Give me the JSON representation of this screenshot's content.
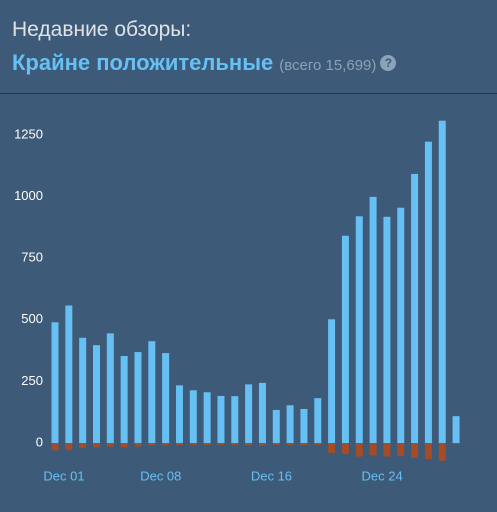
{
  "header": {
    "label": "Недавние обзоры:",
    "rating": "Крайне положительные",
    "total": "(всего 15,699)",
    "help": "?"
  },
  "chart_data": {
    "type": "bar",
    "categories": [
      "Dec 01",
      null,
      null,
      null,
      null,
      null,
      null,
      "Dec 08",
      null,
      null,
      null,
      null,
      null,
      null,
      null,
      "Dec 16",
      null,
      null,
      null,
      null,
      null,
      null,
      null,
      "Dec 24",
      null,
      null,
      null,
      null,
      null,
      null
    ],
    "series": [
      {
        "color": "#66c0f4",
        "values": [
          490,
          558,
          427,
          397,
          445,
          353,
          369,
          413,
          365,
          234,
          214,
          206,
          191,
          190,
          238,
          244,
          134,
          153,
          138,
          182,
          502,
          841,
          920,
          999,
          918,
          955,
          1092,
          1223,
          1308,
          109
        ]
      },
      {
        "color": "#a34c25",
        "values": [
          -30,
          -28,
          -20,
          -18,
          -15,
          -18,
          -14,
          -10,
          -10,
          -9,
          -9,
          -8,
          -8,
          -9,
          -10,
          -12,
          -8,
          -9,
          -8,
          -8,
          -40,
          -45,
          -55,
          -50,
          -55,
          -52,
          -60,
          -65,
          -72,
          -5
        ]
      }
    ],
    "ylim": [
      -80,
      1330
    ],
    "yticks": [
      0,
      250,
      500,
      750,
      1000,
      1250
    ]
  }
}
